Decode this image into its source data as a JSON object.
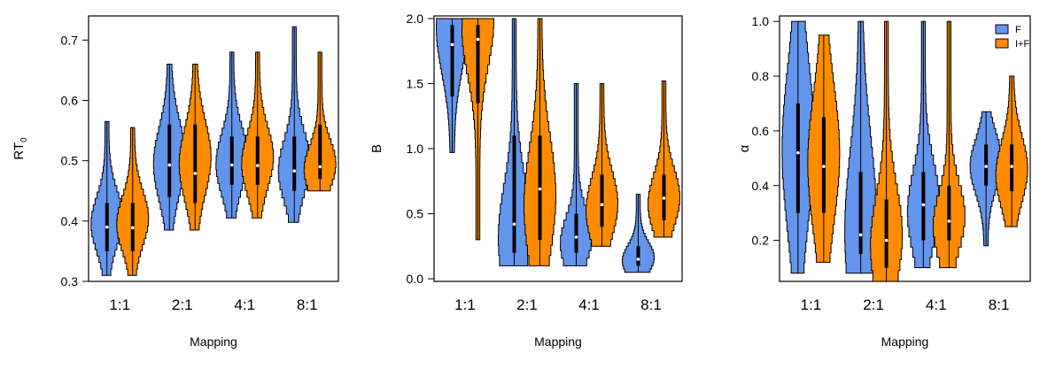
{
  "legend": {
    "position": "top-right of third panel",
    "entries": [
      {
        "label": "F",
        "color": "#6495ED"
      },
      {
        "label": "I+F",
        "color": "#FF8C00"
      }
    ]
  },
  "colors": {
    "F": "#6495ED",
    "I+F": "#FF8C00",
    "outline": "#000000",
    "median": "#ffffff"
  },
  "chart_data": [
    {
      "type": "violin",
      "xlabel": "Mapping",
      "ylabel": "RT0",
      "ylabel_main": "RT",
      "ylabel_sub": "0",
      "categories": [
        "1:1",
        "2:1",
        "4:1",
        "8:1"
      ],
      "ylim": [
        0.3,
        0.74
      ],
      "yticks": [
        0.3,
        0.4,
        0.5,
        0.6,
        0.7
      ],
      "ytick_labels": [
        "0.3",
        "0.4",
        "0.5",
        "0.6",
        "0.7"
      ],
      "grid": false,
      "series": [
        {
          "name": "F",
          "violins": [
            {
              "category": "1:1",
              "min": 0.31,
              "max": 0.565,
              "q1": 0.35,
              "q3": 0.43,
              "median": 0.39,
              "mode": 0.4,
              "bandwidth": 0.045
            },
            {
              "category": "2:1",
              "min": 0.385,
              "max": 0.66,
              "q1": 0.44,
              "q3": 0.56,
              "median": 0.493,
              "mode": 0.5,
              "bandwidth": 0.06
            },
            {
              "category": "4:1",
              "min": 0.405,
              "max": 0.68,
              "q1": 0.46,
              "q3": 0.54,
              "median": 0.493,
              "mode": 0.5,
              "bandwidth": 0.05
            },
            {
              "category": "8:1",
              "min": 0.398,
              "max": 0.722,
              "q1": 0.45,
              "q3": 0.54,
              "median": 0.483,
              "mode": 0.49,
              "bandwidth": 0.05
            }
          ]
        },
        {
          "name": "I+F",
          "violins": [
            {
              "category": "1:1",
              "min": 0.31,
              "max": 0.555,
              "q1": 0.35,
              "q3": 0.43,
              "median": 0.389,
              "mode": 0.4,
              "bandwidth": 0.045
            },
            {
              "category": "2:1",
              "min": 0.385,
              "max": 0.66,
              "q1": 0.43,
              "q3": 0.56,
              "median": 0.479,
              "mode": 0.5,
              "bandwidth": 0.06
            },
            {
              "category": "4:1",
              "min": 0.405,
              "max": 0.68,
              "q1": 0.46,
              "q3": 0.54,
              "median": 0.492,
              "mode": 0.5,
              "bandwidth": 0.05
            },
            {
              "category": "8:1",
              "min": 0.45,
              "max": 0.68,
              "q1": 0.47,
              "q3": 0.56,
              "median": 0.49,
              "mode": 0.49,
              "bandwidth": 0.04
            }
          ]
        }
      ]
    },
    {
      "type": "violin",
      "xlabel": "Mapping",
      "ylabel": "B",
      "ylabel_main": "B",
      "ylabel_sub": "",
      "categories": [
        "1:1",
        "2:1",
        "4:1",
        "8:1"
      ],
      "ylim": [
        -0.02,
        2.02
      ],
      "yticks": [
        0.0,
        0.5,
        1.0,
        1.5,
        2.0
      ],
      "ytick_labels": [
        "0.0",
        "0.5",
        "1.0",
        "1.5",
        "2.0"
      ],
      "grid": false,
      "series": [
        {
          "name": "F",
          "violins": [
            {
              "category": "1:1",
              "min": 0.97,
              "max": 2.0,
              "q1": 1.4,
              "q3": 1.95,
              "median": 1.8,
              "mode": 1.95,
              "bandwidth": 0.35
            },
            {
              "category": "2:1",
              "min": 0.1,
              "max": 2.0,
              "q1": 0.2,
              "q3": 1.1,
              "median": 0.42,
              "mode": 0.35,
              "bandwidth": 0.4
            },
            {
              "category": "4:1",
              "min": 0.1,
              "max": 1.5,
              "q1": 0.2,
              "q3": 0.5,
              "median": 0.32,
              "mode": 0.3,
              "bandwidth": 0.2
            },
            {
              "category": "8:1",
              "min": 0.05,
              "max": 0.65,
              "q1": 0.1,
              "q3": 0.25,
              "median": 0.15,
              "mode": 0.15,
              "bandwidth": 0.12
            }
          ]
        },
        {
          "name": "I+F",
          "violins": [
            {
              "category": "1:1",
              "min": 0.3,
              "max": 2.0,
              "q1": 1.35,
              "q3": 1.95,
              "median": 1.84,
              "mode": 1.95,
              "bandwidth": 0.35
            },
            {
              "category": "2:1",
              "min": 0.1,
              "max": 2.0,
              "q1": 0.3,
              "q3": 1.1,
              "median": 0.69,
              "mode": 0.6,
              "bandwidth": 0.45
            },
            {
              "category": "4:1",
              "min": 0.25,
              "max": 1.5,
              "q1": 0.4,
              "q3": 0.8,
              "median": 0.57,
              "mode": 0.55,
              "bandwidth": 0.25
            },
            {
              "category": "8:1",
              "min": 0.32,
              "max": 1.52,
              "q1": 0.45,
              "q3": 0.8,
              "median": 0.62,
              "mode": 0.6,
              "bandwidth": 0.22
            }
          ]
        }
      ]
    },
    {
      "type": "violin",
      "xlabel": "Mapping",
      "ylabel": "α",
      "ylabel_main": "α",
      "ylabel_sub": "",
      "categories": [
        "1:1",
        "2:1",
        "4:1",
        "8:1"
      ],
      "ylim": [
        0.05,
        1.02
      ],
      "yticks": [
        0.2,
        0.4,
        0.6,
        0.8,
        1.0
      ],
      "ytick_labels": [
        "0.2",
        "0.4",
        "0.6",
        "0.8",
        "1.0"
      ],
      "grid": false,
      "series": [
        {
          "name": "F",
          "violins": [
            {
              "category": "1:1",
              "min": 0.08,
              "max": 1.0,
              "q1": 0.3,
              "q3": 0.7,
              "median": 0.52,
              "mode": 0.55,
              "bandwidth": 0.3
            },
            {
              "category": "2:1",
              "min": 0.08,
              "max": 1.0,
              "q1": 0.15,
              "q3": 0.45,
              "median": 0.22,
              "mode": 0.25,
              "bandwidth": 0.3
            },
            {
              "category": "4:1",
              "min": 0.1,
              "max": 1.0,
              "q1": 0.2,
              "q3": 0.45,
              "median": 0.33,
              "mode": 0.32,
              "bandwidth": 0.15
            },
            {
              "category": "8:1",
              "min": 0.18,
              "max": 0.67,
              "q1": 0.4,
              "q3": 0.55,
              "median": 0.47,
              "mode": 0.48,
              "bandwidth": 0.1
            }
          ]
        },
        {
          "name": "I+F",
          "violins": [
            {
              "category": "1:1",
              "min": 0.12,
              "max": 0.95,
              "q1": 0.3,
              "q3": 0.65,
              "median": 0.47,
              "mode": 0.5,
              "bandwidth": 0.25
            },
            {
              "category": "2:1",
              "min": 0.05,
              "max": 1.0,
              "q1": 0.1,
              "q3": 0.35,
              "median": 0.2,
              "mode": 0.2,
              "bandwidth": 0.18
            },
            {
              "category": "4:1",
              "min": 0.1,
              "max": 1.0,
              "q1": 0.2,
              "q3": 0.4,
              "median": 0.27,
              "mode": 0.27,
              "bandwidth": 0.12
            },
            {
              "category": "8:1",
              "min": 0.25,
              "max": 0.8,
              "q1": 0.38,
              "q3": 0.55,
              "median": 0.47,
              "mode": 0.45,
              "bandwidth": 0.12
            }
          ]
        }
      ]
    }
  ]
}
